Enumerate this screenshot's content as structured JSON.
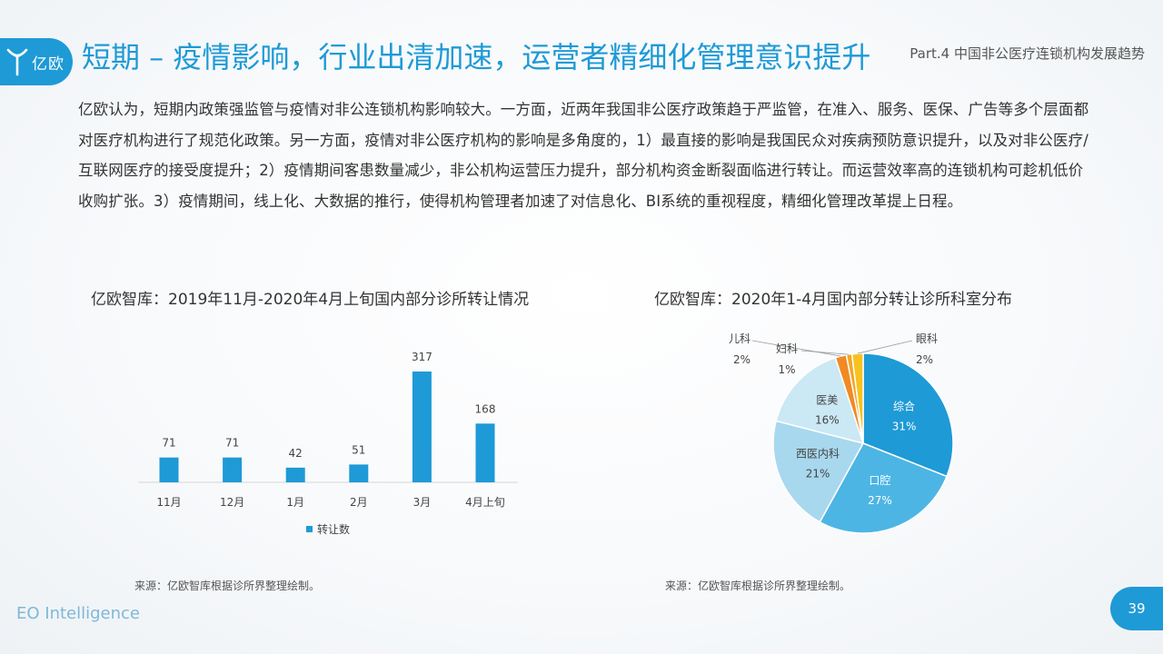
{
  "header": {
    "logo_text": "亿欧",
    "title": "短期 – 疫情影响，行业出清加速，运营者精细化管理意识提升",
    "part_label": "Part.4 中国非公医疗连锁机构发展趋势"
  },
  "intro": "亿欧认为，短期内政策强监管与疫情对非公连锁机构影响较大。一方面，近两年我国非公医疗政策趋于严监管，在准入、服务、医保、广告等多个层面都对医疗机构进行了规范化政策。另一方面，疫情对非公医疗机构的影响是多角度的，1）最直接的影响是我国民众对疾病预防意识提升，以及对非公医疗/互联网医疗的接受度提升；2）疫情期间客患数量减少，非公机构运营压力提升，部分机构资金断裂面临进行转让。而运营效率高的连锁机构可趁机低价收购扩张。3）疫情期间，线上化、大数据的推行，使得机构管理者加速了对信息化、BI系统的重视程度，精细化管理改革提上日程。",
  "bar_panel": {
    "title": "亿欧智库：2019年11月-2020年4月上旬国内部分诊所转让情况",
    "source": "来源：亿欧智库根据诊所界整理绘制。"
  },
  "pie_panel": {
    "title": "亿欧智库：2020年1-4月国内部分转让诊所科室分布",
    "source": "来源：亿欧智库根据诊所界整理绘制。"
  },
  "footer": {
    "brand": "EO Intelligence",
    "page_number": "39"
  },
  "chart_data": [
    {
      "type": "bar",
      "title": "亿欧智库：2019年11月-2020年4月上旬国内部分诊所转让情况",
      "categories": [
        "11月",
        "12月",
        "1月",
        "2月",
        "3月",
        "4月上旬"
      ],
      "series": [
        {
          "name": "转让数",
          "values": [
            71,
            71,
            42,
            51,
            317,
            168
          ],
          "color": "#1e9ad6"
        }
      ],
      "grid": false,
      "legend": "bottom"
    },
    {
      "type": "pie",
      "title": "亿欧智库：2020年1-4月国内部分转让诊所科室分布",
      "slices": [
        {
          "label": "综合",
          "percent": "31%",
          "value": 31,
          "color": "#1e9ad6"
        },
        {
          "label": "口腔",
          "percent": "27%",
          "value": 27,
          "color": "#4db5e4"
        },
        {
          "label": "西医内科",
          "percent": "21%",
          "value": 21,
          "color": "#a8d8ee"
        },
        {
          "label": "医美",
          "percent": "16%",
          "value": 16,
          "color": "#cbe8f5"
        },
        {
          "label": "儿科",
          "percent": "2%",
          "value": 2,
          "color": "#f08a24"
        },
        {
          "label": "妇科",
          "percent": "1%",
          "value": 1,
          "color": "#f5a623"
        },
        {
          "label": "眼科",
          "percent": "2%",
          "value": 2,
          "color": "#f7c21e"
        }
      ]
    }
  ]
}
